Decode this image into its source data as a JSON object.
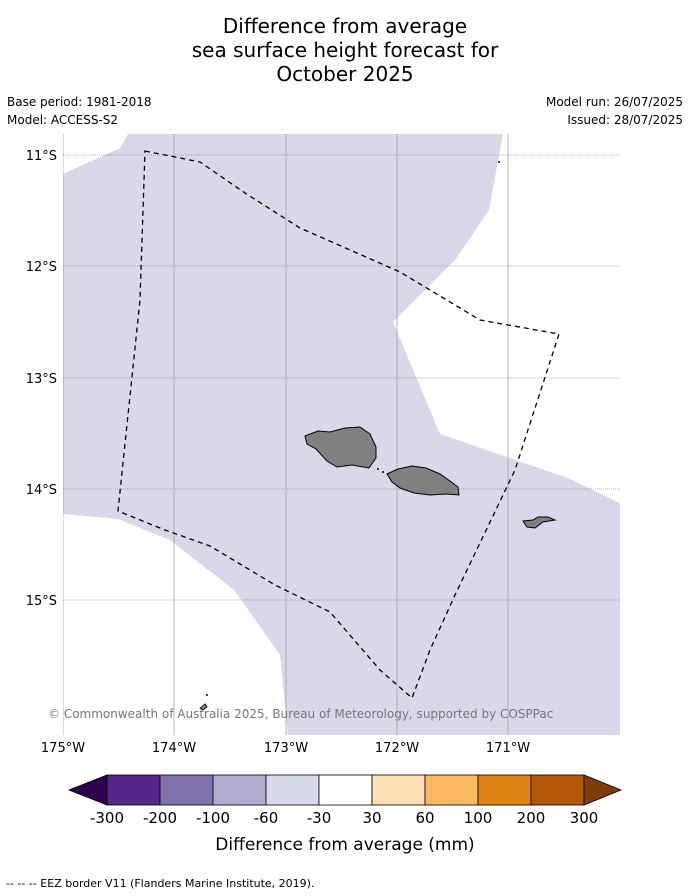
{
  "title": {
    "line1": "Difference from average",
    "line2": "sea surface height forecast for",
    "line3": "October 2025"
  },
  "meta": {
    "base_period": "Base period: 1981-2018",
    "model": "Model: ACCESS-S2",
    "model_run": "Model run: 26/07/2025",
    "issued": "Issued: 28/07/2025"
  },
  "map": {
    "lat_labels": [
      "11°S",
      "12°S",
      "13°S",
      "14°S",
      "15°S"
    ],
    "lon_labels": [
      "175°W",
      "174°W",
      "173°W",
      "172°W",
      "171°W"
    ],
    "copyright": "© Commonwealth of Australia 2025, Bureau of Meteorology, supported by COSPPac",
    "colors": {
      "ocean_anomaly": "#d8d8ea",
      "land": "#808080",
      "gridline": "#666666",
      "eez_border": "#000000"
    }
  },
  "colorbar": {
    "title": "Difference from average (mm)",
    "tick_labels": [
      "-300",
      "-200",
      "-100",
      "-60",
      "-30",
      "30",
      "60",
      "100",
      "200",
      "300"
    ],
    "colors": [
      "#2d004b",
      "#542788",
      "#8073ac",
      "#b2abd2",
      "#d8daeb",
      "#ffffff",
      "#fee0b6",
      "#fdb863",
      "#e08214",
      "#b35806",
      "#7f3b08"
    ]
  },
  "footnote": "--  --  -- EEZ border V11 (Flanders Marine Institute, 2019)."
}
